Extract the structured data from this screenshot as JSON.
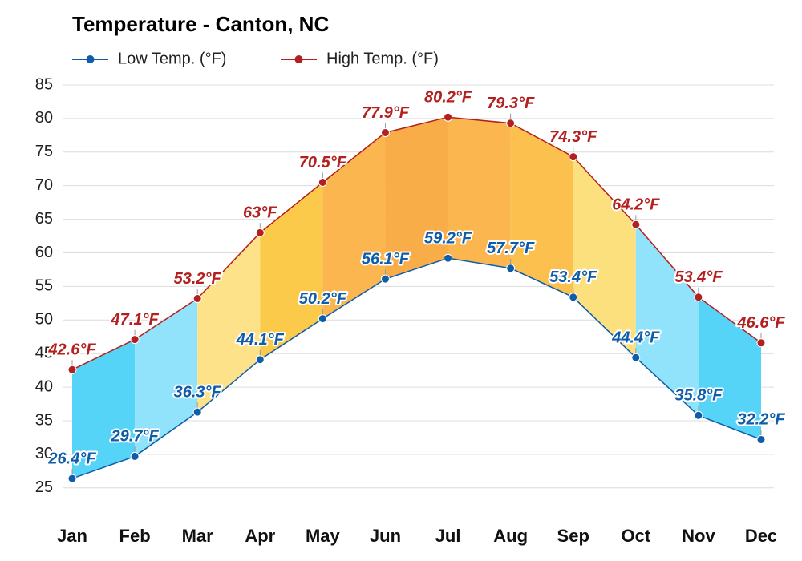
{
  "chart_data": {
    "type": "range-line",
    "title": "Temperature - Canton, NC",
    "categories": [
      "Jan",
      "Feb",
      "Mar",
      "Apr",
      "May",
      "Jun",
      "Jul",
      "Aug",
      "Sep",
      "Oct",
      "Nov",
      "Dec"
    ],
    "series": [
      {
        "name": "Low Temp. (°F)",
        "color": "#0f5ca8",
        "values": [
          26.4,
          29.7,
          36.3,
          44.1,
          50.2,
          56.1,
          59.2,
          57.7,
          53.4,
          44.4,
          35.8,
          32.2
        ],
        "value_labels": [
          "26.4°F",
          "29.7°F",
          "36.3°F",
          "44.1°F",
          "50.2°F",
          "56.1°F",
          "59.2°F",
          "57.7°F",
          "53.4°F",
          "44.4°F",
          "35.8°F",
          "32.2°F"
        ]
      },
      {
        "name": "High Temp. (°F)",
        "color": "#b3201f",
        "values": [
          42.6,
          47.1,
          53.2,
          63,
          70.5,
          77.9,
          80.2,
          79.3,
          74.3,
          64.2,
          53.4,
          46.6
        ],
        "value_labels": [
          "42.6°F",
          "47.1°F",
          "53.2°F",
          "63°F",
          "70.5°F",
          "77.9°F",
          "80.2°F",
          "79.3°F",
          "74.3°F",
          "64.2°F",
          "53.4°F",
          "46.6°F"
        ]
      }
    ],
    "band_colors": [
      "#55d4f8",
      "#90e3fa",
      "#fde28a",
      "#fcca4b",
      "#fbb650",
      "#f9ad48",
      "#fbb650",
      "#fcc04f",
      "#fde07e",
      "#90e3fa",
      "#55d4f8"
    ],
    "ylim": [
      20,
      86
    ],
    "yticks": [
      25,
      30,
      35,
      40,
      45,
      50,
      55,
      60,
      65,
      70,
      75,
      80,
      85
    ],
    "grid": true
  }
}
